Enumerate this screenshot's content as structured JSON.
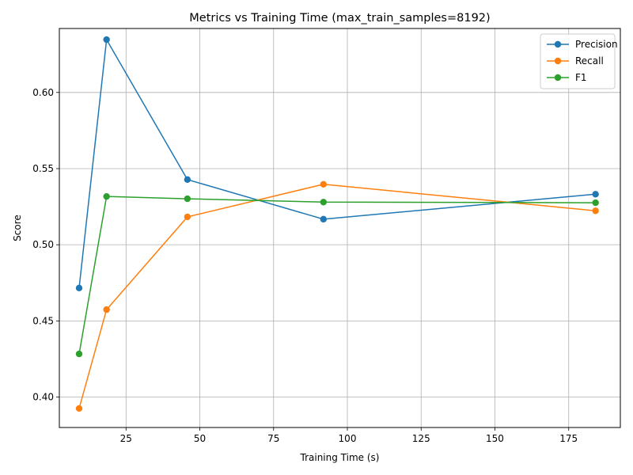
{
  "chart_data": {
    "type": "line",
    "title": "Metrics vs Training Time (max_train_samples=8192)",
    "xlabel": "Training Time (s)",
    "ylabel": "Score",
    "xlim": [
      2.4,
      192.5
    ],
    "ylim": [
      0.38,
      0.642
    ],
    "xticks": [
      25,
      50,
      75,
      100,
      125,
      150,
      175
    ],
    "xtick_labels": [
      "25",
      "50",
      "75",
      "100",
      "125",
      "150",
      "175"
    ],
    "yticks": [
      0.4,
      0.45,
      0.5,
      0.55,
      0.6
    ],
    "ytick_labels": [
      "0.40",
      "0.45",
      "0.50",
      "0.55",
      "0.60"
    ],
    "grid": true,
    "legend_position": "top-right",
    "series": [
      {
        "name": "Precision",
        "color": "#1f77b4",
        "x": [
          9.1,
          18.4,
          45.8,
          91.9,
          184.1
        ],
        "y": [
          0.4716,
          0.6347,
          0.5428,
          0.5168,
          0.5332
        ]
      },
      {
        "name": "Recall",
        "color": "#ff7f0e",
        "x": [
          9.1,
          18.4,
          45.8,
          91.9,
          184.1
        ],
        "y": [
          0.3925,
          0.4574,
          0.5183,
          0.5397,
          0.5223
        ]
      },
      {
        "name": "F1",
        "color": "#2ca02c",
        "x": [
          9.1,
          18.4,
          45.8,
          91.9,
          184.1
        ],
        "y": [
          0.4283,
          0.5317,
          0.5302,
          0.528,
          0.5276
        ]
      }
    ]
  }
}
